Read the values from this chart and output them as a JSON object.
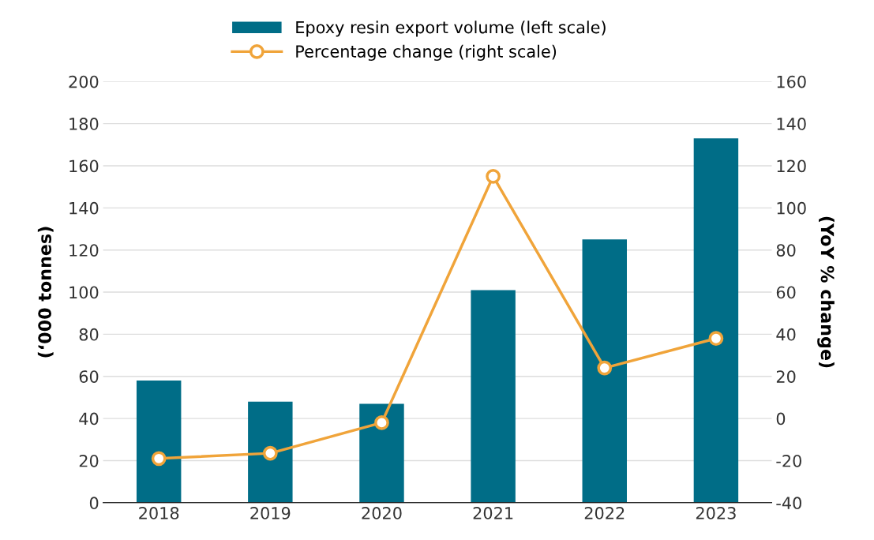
{
  "chart_data": {
    "type": "bar",
    "categories": [
      "2018",
      "2019",
      "2020",
      "2021",
      "2022",
      "2023"
    ],
    "ylabel": "(‘000 tonnes)",
    "y2label": "(YoY % change)",
    "series": [
      {
        "name": "Epoxy resin export volume (left scale)",
        "color": "#006d87",
        "values": [
          58,
          48,
          47,
          101,
          125,
          173
        ]
      },
      {
        "name": "Percentage change (right scale)",
        "type": "line",
        "axis": "y2",
        "color": "#f0a43a",
        "marker": "circle",
        "values": [
          -19,
          -16.5,
          -2,
          115,
          24,
          38
        ]
      }
    ],
    "ylim": [
      0,
      200
    ],
    "yticks": [
      0,
      20,
      40,
      60,
      80,
      100,
      120,
      140,
      160,
      180,
      200
    ],
    "y2lim": [
      -40,
      160
    ],
    "y2ticks": [
      -40,
      -20,
      0,
      20,
      40,
      60,
      80,
      100,
      120,
      140,
      160
    ],
    "grid": "y",
    "legend": "top"
  }
}
